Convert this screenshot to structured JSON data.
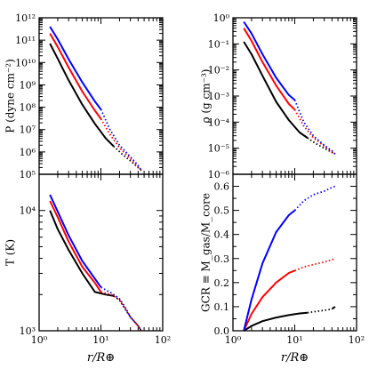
{
  "colors": {
    "series_1": "#000000",
    "series_2": "#ff0000",
    "series_3": "#0000ff"
  },
  "chart_data": [
    {
      "type": "line",
      "panel": "top-left",
      "xscale": "log",
      "yscale": "log",
      "xlim": [
        1,
        100
      ],
      "ylim": [
        100000,
        1000000000000
      ],
      "xlabel": "",
      "ylabel": "P (dyne cm⁻²)",
      "yticklabels": [
        "10⁵",
        "10⁶",
        "10⁷",
        "10⁸",
        "10⁹",
        "10¹⁰",
        "10¹¹",
        "10¹²"
      ],
      "xticklabels": [],
      "series": [
        {
          "color": "black",
          "solid": {
            "x": [
              1.5,
              2,
              3,
              5,
              8,
              12,
              16
            ],
            "y": [
              70000000000.0,
              15000000000.0,
              1600000000.0,
              130000000.0,
              18000000.0,
              4000000.0,
              1800000.0
            ]
          },
          "dotted": {
            "x": [
              16,
              22,
              30,
              40,
              45
            ],
            "y": [
              1800000.0,
              800000.0,
              400000.0,
              200000.0,
              150000.0
            ]
          }
        },
        {
          "color": "red",
          "solid": {
            "x": [
              1.5,
              2,
              3,
              5,
              8,
              10
            ],
            "y": [
              200000000000.0,
              50000000000.0,
              6000000000.0,
              500000000.0,
              70000000.0,
              30000000.0
            ]
          },
          "dotted": {
            "x": [
              10,
              14,
              20,
              30,
              40,
              45
            ],
            "y": [
              30000000.0,
              6000000.0,
              1500000.0,
              500000.0,
              200000.0,
              150000.0
            ]
          }
        },
        {
          "color": "blue",
          "solid": {
            "x": [
              1.5,
              2,
              3,
              5,
              8,
              10
            ],
            "y": [
              400000000000.0,
              110000000000.0,
              14000000000.0,
              1300000000.0,
              180000000.0,
              80000000.0
            ]
          },
          "dotted": {
            "x": [
              10,
              14,
              20,
              30,
              40,
              45
            ],
            "y": [
              80000000.0,
              10000000.0,
              2000000.0,
              600000.0,
              250000.0,
              150000.0
            ]
          }
        }
      ]
    },
    {
      "type": "line",
      "panel": "top-right",
      "xscale": "log",
      "yscale": "log",
      "xlim": [
        1,
        100
      ],
      "ylim": [
        1e-06,
        1
      ],
      "xlabel": "",
      "ylabel": "ρ (g cm⁻³)",
      "yticklabels": [
        "10⁻⁶",
        "10⁻⁵",
        "10⁻⁴",
        "10⁻³",
        "10⁻²",
        "10⁻¹",
        "10⁰"
      ],
      "xticklabels": [],
      "series": [
        {
          "color": "black",
          "solid": {
            "x": [
              1.5,
              2,
              3,
              5,
              8,
              12,
              16
            ],
            "y": [
              0.12,
              0.04,
              0.006,
              0.0006,
              0.00012,
              4e-05,
              2.5e-05
            ]
          },
          "dotted": {
            "x": [
              16,
              22,
              30,
              40,
              45
            ],
            "y": [
              2.5e-05,
              1.5e-05,
              1e-05,
              7e-06,
              6e-06
            ]
          }
        },
        {
          "color": "red",
          "solid": {
            "x": [
              1.5,
              2,
              3,
              5,
              8,
              10
            ],
            "y": [
              0.4,
              0.13,
              0.02,
              0.0025,
              0.0005,
              0.0003
            ]
          },
          "dotted": {
            "x": [
              10,
              14,
              20,
              30,
              40,
              45
            ],
            "y": [
              0.0003,
              7e-05,
              2.5e-05,
              1.2e-05,
              7e-06,
              6e-06
            ]
          }
        },
        {
          "color": "blue",
          "solid": {
            "x": [
              1.5,
              2,
              3,
              5,
              8,
              10
            ],
            "y": [
              0.7,
              0.25,
              0.04,
              0.005,
              0.0011,
              0.0007
            ]
          },
          "dotted": {
            "x": [
              10,
              14,
              20,
              30,
              40,
              45
            ],
            "y": [
              0.0007,
              0.0001,
              3e-05,
              1.3e-05,
              8e-06,
              6e-06
            ]
          }
        }
      ]
    },
    {
      "type": "line",
      "panel": "bottom-left",
      "xscale": "log",
      "yscale": "log",
      "xlim": [
        1,
        100
      ],
      "ylim": [
        1000,
        20000
      ],
      "xlabel": "r/R⊕",
      "ylabel": "T (K)",
      "xticklabels": [
        "10⁰",
        "10¹",
        "10²"
      ],
      "yticklabels": [
        "10³",
        "10⁴"
      ],
      "series": [
        {
          "color": "black",
          "solid": {
            "x": [
              1.5,
              2,
              3,
              5,
              8,
              12,
              16
            ],
            "y": [
              10000,
              7000,
              4700,
              3000,
              2100,
              2000,
              1950
            ]
          },
          "dotted": {
            "x": [
              16,
              20,
              25,
              30,
              40,
              45
            ],
            "y": [
              1950,
              1800,
              1500,
              1300,
              1100,
              1000
            ]
          }
        },
        {
          "color": "red",
          "solid": {
            "x": [
              1.5,
              2,
              3,
              5,
              8,
              10
            ],
            "y": [
              12000,
              8800,
              5500,
              3400,
              2500,
              2100
            ]
          },
          "dotted": {
            "x": [
              10,
              15,
              20,
              25,
              30,
              40,
              45
            ],
            "y": [
              2100,
              2000,
              1800,
              1500,
              1300,
              1100,
              1000
            ]
          }
        },
        {
          "color": "blue",
          "solid": {
            "x": [
              1.5,
              2,
              3,
              5,
              8,
              10
            ],
            "y": [
              13500,
              9800,
              6200,
              3800,
              2700,
              2300
            ]
          },
          "dotted": {
            "x": [
              10,
              15,
              20,
              25,
              30,
              40,
              45
            ],
            "y": [
              2300,
              2050,
              1850,
              1550,
              1300,
              1100,
              1000
            ]
          }
        }
      ]
    },
    {
      "type": "line",
      "panel": "bottom-right",
      "xscale": "log",
      "yscale": "linear",
      "xlim": [
        1,
        100
      ],
      "ylim": [
        0,
        0.65
      ],
      "xlabel": "r/R⊕",
      "ylabel": "GCR ≡ M_gas/M_core",
      "xticklabels": [
        "10⁰",
        "10¹",
        "10²"
      ],
      "yticklabels": [
        "0.0",
        "0.1",
        "0.2",
        "0.3",
        "0.4",
        "0.5",
        "0.6"
      ],
      "series": [
        {
          "color": "black",
          "solid": {
            "x": [
              1.5,
              2,
              3,
              5,
              8,
              12,
              16
            ],
            "y": [
              0,
              0.02,
              0.04,
              0.055,
              0.065,
              0.072,
              0.075
            ]
          },
          "dotted": {
            "x": [
              16,
              22,
              30,
              40
            ],
            "y": [
              0.075,
              0.08,
              0.085,
              0.09
            ]
          },
          "solid_tail": {
            "x": [
              40,
              45
            ],
            "y": [
              0.09,
              0.1
            ]
          }
        },
        {
          "color": "red",
          "solid": {
            "x": [
              1.5,
              2,
              3,
              5,
              8,
              10
            ],
            "y": [
              0,
              0.07,
              0.14,
              0.2,
              0.24,
              0.25
            ]
          },
          "dotted": {
            "x": [
              10,
              14,
              20,
              30,
              40,
              45
            ],
            "y": [
              0.25,
              0.265,
              0.275,
              0.285,
              0.295,
              0.3
            ]
          }
        },
        {
          "color": "blue",
          "solid": {
            "x": [
              1.5,
              2,
              3,
              5,
              8,
              10
            ],
            "y": [
              0,
              0.13,
              0.28,
              0.41,
              0.48,
              0.5
            ]
          },
          "dotted": {
            "x": [
              10,
              14,
              20,
              30,
              40,
              45
            ],
            "y": [
              0.5,
              0.54,
              0.565,
              0.58,
              0.595,
              0.6
            ]
          }
        }
      ]
    }
  ]
}
